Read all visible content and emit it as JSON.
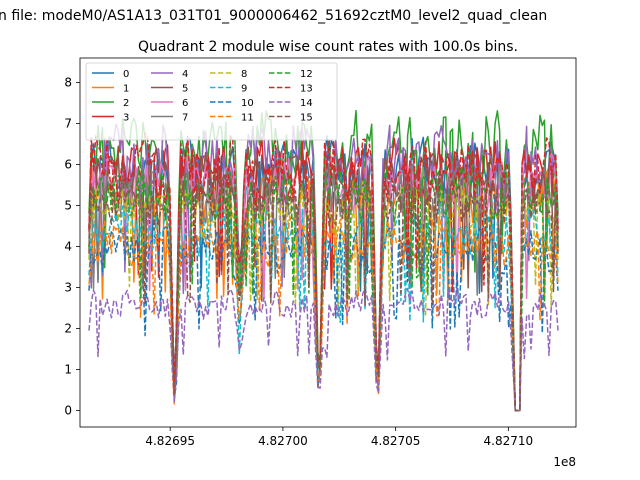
{
  "chart_data": {
    "type": "line",
    "suptitle": "n file: modeM0/AS1A13_031T01_9000006462_51692cztM0_level2_quad_clean",
    "title": "Quadrant 2 module wise count rates with 100.0s bins.",
    "xlabel": "",
    "ylabel": "",
    "x_offset_label": "1e8",
    "xlim": [
      4.82691,
      4.82713
    ],
    "ylim": [
      -0.4,
      8.6
    ],
    "x_ticks": [
      "4.82695",
      "4.82700",
      "4.82705",
      "4.82710"
    ],
    "y_ticks": [
      "0",
      "1",
      "2",
      "3",
      "4",
      "5",
      "6",
      "7",
      "8"
    ],
    "x_range_data": [
      4.826914,
      4.827122
    ],
    "dips": [
      {
        "x": 4.826952,
        "depth": 1.0
      },
      {
        "x": 4.826981,
        "depth": 0.6
      },
      {
        "x": 4.827016,
        "depth": 1.0
      },
      {
        "x": 4.827042,
        "depth": 1.0
      },
      {
        "x": 4.827103,
        "depth": 1.0,
        "flat_until": 4.827106
      }
    ],
    "legend_columns": 4,
    "legend_position": "upper-left",
    "series": [
      {
        "name": "0",
        "color": "#1f77b4",
        "dashed": false,
        "level": 5.9
      },
      {
        "name": "1",
        "color": "#ff7f0e",
        "dashed": false,
        "level": 5.2
      },
      {
        "name": "2",
        "color": "#2ca02c",
        "dashed": false,
        "level": 6.4
      },
      {
        "name": "3",
        "color": "#d62728",
        "dashed": false,
        "level": 5.8
      },
      {
        "name": "4",
        "color": "#9467bd",
        "dashed": false,
        "level": 6.1
      },
      {
        "name": "5",
        "color": "#8c564b",
        "dashed": false,
        "level": 5.6
      },
      {
        "name": "6",
        "color": "#e377c2",
        "dashed": false,
        "level": 5.5
      },
      {
        "name": "7",
        "color": "#7f7f7f",
        "dashed": false,
        "level": 5.3
      },
      {
        "name": "8",
        "color": "#bcbd22",
        "dashed": true,
        "level": 4.9
      },
      {
        "name": "9",
        "color": "#17becf",
        "dashed": true,
        "level": 4.4
      },
      {
        "name": "10",
        "color": "#1f77b4",
        "dashed": true,
        "level": 3.9
      },
      {
        "name": "11",
        "color": "#ff7f0e",
        "dashed": true,
        "level": 4.1
      },
      {
        "name": "12",
        "color": "#2ca02c",
        "dashed": true,
        "level": 5.3
      },
      {
        "name": "13",
        "color": "#d62728",
        "dashed": true,
        "level": 5.9
      },
      {
        "name": "14",
        "color": "#9467bd",
        "dashed": true,
        "level": 2.6
      },
      {
        "name": "15",
        "color": "#8c564b",
        "dashed": true,
        "level": 5.1
      }
    ]
  }
}
